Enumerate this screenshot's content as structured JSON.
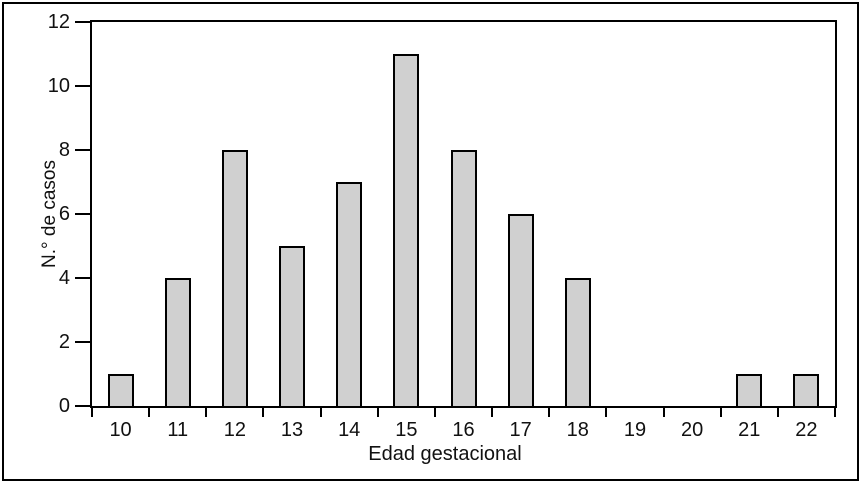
{
  "figure": {
    "background": "#ffffff",
    "frame_color": "#000000"
  },
  "chart_data": {
    "type": "bar",
    "title": "",
    "xlabel": "Edad gestacional",
    "ylabel": "N.° de casos",
    "categories": [
      "10",
      "11",
      "12",
      "13",
      "14",
      "15",
      "16",
      "17",
      "18",
      "19",
      "20",
      "21",
      "22"
    ],
    "values": [
      1,
      4,
      8,
      5,
      7,
      11,
      8,
      6,
      4,
      0,
      0,
      1,
      1
    ],
    "ylim": [
      0,
      12
    ],
    "yticks": [
      0,
      2,
      4,
      6,
      8,
      10,
      12
    ],
    "grid": false,
    "framed_plot_area": true,
    "bar_fill": "#d0d0d0",
    "bar_border": "#000000",
    "axis_color": "#000000"
  }
}
